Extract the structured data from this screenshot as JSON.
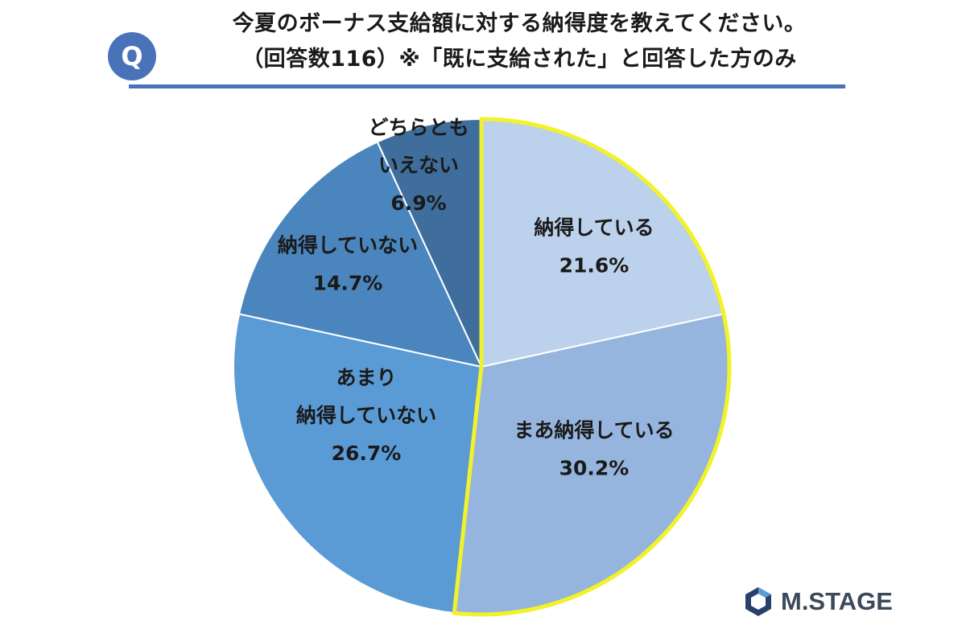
{
  "question": {
    "badge": "Q",
    "line1": "今夏のボーナス支給額に対する納得度を教えてください。",
    "line2": "（回答数116）※「既に支給された」と回答した方のみ"
  },
  "chart_data": {
    "type": "pie",
    "start_angle_deg": 0,
    "direction": "clockwise",
    "highlight_color": "#f2f22a",
    "slices": [
      {
        "label_lines": [
          "納得している"
        ],
        "value": 21.6,
        "value_text": "21.6%",
        "color": "#bcd1eb",
        "highlight": true
      },
      {
        "label_lines": [
          "まあ納得している"
        ],
        "value": 30.2,
        "value_text": "30.2%",
        "color": "#95b5de",
        "highlight": true
      },
      {
        "label_lines": [
          "あまり",
          "納得していない"
        ],
        "value": 26.7,
        "value_text": "26.7%",
        "color": "#5b9bd5",
        "highlight": false
      },
      {
        "label_lines": [
          "納得していない"
        ],
        "value": 14.7,
        "value_text": "14.7%",
        "color": "#4a86bd",
        "highlight": false
      },
      {
        "label_lines": [
          "どちらとも",
          "いえない"
        ],
        "value": 6.9,
        "value_text": "6.9%",
        "color": "#3f6e9c",
        "highlight": false
      }
    ]
  },
  "logo": {
    "text": "M.STAGE",
    "icon": "hexagon-logo-icon"
  }
}
